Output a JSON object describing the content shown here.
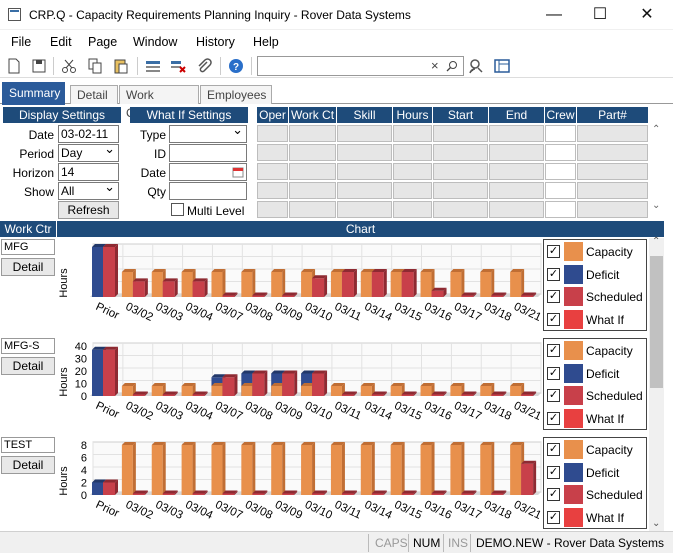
{
  "window": {
    "title": "CRP.Q - Capacity Requirements Planning Inquiry - Rover Data Systems",
    "minimize": "—",
    "maximize": "☐",
    "close": "✕"
  },
  "menu": [
    "File",
    "Edit",
    "Page",
    "Window",
    "History",
    "Help"
  ],
  "tabs": {
    "summary": "Summary",
    "detail": "Detail",
    "work_centers": "Work Centers",
    "employees": "Employees"
  },
  "display_settings": {
    "header": "Display Settings",
    "date_label": "Date",
    "date_value": "03-02-11",
    "period_label": "Period",
    "period_value": "Day",
    "horizon_label": "Horizon",
    "horizon_value": "14",
    "show_label": "Show",
    "show_value": "All",
    "refresh": "Refresh"
  },
  "what_if_settings": {
    "header": "What If Settings",
    "type_label": "Type",
    "type_value": "",
    "id_label": "ID",
    "id_value": "",
    "date_label": "Date",
    "date_value": "",
    "qty_label": "Qty",
    "qty_value": "",
    "multi_level": "Multi Level"
  },
  "grid": {
    "columns": [
      "Oper",
      "Work Ct",
      "Skill",
      "Hours",
      "Start",
      "End",
      "Crew",
      "Part#"
    ]
  },
  "chart_section": {
    "work_ctr_header": "Work Ctr",
    "chart_header": "Chart",
    "detail_button": "Detail",
    "y_label": "Hours"
  },
  "legend": {
    "capacity": "Capacity",
    "deficit": "Deficit",
    "scheduled": "Scheduled",
    "what_if": "What If"
  },
  "colors": {
    "capacity": "#e8904c",
    "deficit": "#2f4b8f",
    "scheduled": "#c8404a",
    "what_if": "#e84040",
    "header": "#1e4b7a"
  },
  "status": {
    "caps": "CAPS",
    "num": "NUM",
    "ins": "INS",
    "company": "DEMO.NEW - Rover Data Systems"
  },
  "chart_data": [
    {
      "type": "bar",
      "work_center": "MFG",
      "categories": [
        "Prior",
        "03/02",
        "03/03",
        "03/04",
        "03/07",
        "03/08",
        "03/09",
        "03/10",
        "03/11",
        "03/14",
        "03/15",
        "03/16",
        "03/17",
        "03/18",
        "03/21"
      ],
      "yticks": [],
      "ylim": [
        0,
        16
      ],
      "series": [
        {
          "name": "Capacity",
          "values": [
            0,
            8,
            8,
            8,
            8,
            8,
            8,
            8,
            8,
            8,
            8,
            8,
            8,
            8,
            8
          ]
        },
        {
          "name": "Deficit",
          "values": [
            16,
            0,
            0,
            0,
            0,
            0,
            0,
            0,
            0,
            0,
            0,
            0,
            0,
            0,
            0
          ]
        },
        {
          "name": "Scheduled",
          "values": [
            16,
            5,
            5,
            5,
            0,
            0,
            0,
            6,
            8,
            8,
            8,
            2,
            0,
            0,
            0
          ]
        }
      ],
      "ylabel": "Hours"
    },
    {
      "type": "bar",
      "work_center": "MFG-S",
      "categories": [
        "Prior",
        "03/02",
        "03/03",
        "03/04",
        "03/07",
        "03/08",
        "03/09",
        "03/10",
        "03/11",
        "03/14",
        "03/15",
        "03/16",
        "03/17",
        "03/18",
        "03/21"
      ],
      "yticks": [
        "40",
        "30",
        "20",
        "10",
        "0"
      ],
      "ylim": [
        0,
        40
      ],
      "series": [
        {
          "name": "Capacity",
          "values": [
            0,
            8,
            8,
            8,
            8,
            8,
            8,
            8,
            8,
            8,
            8,
            8,
            8,
            8,
            8
          ]
        },
        {
          "name": "Deficit",
          "values": [
            37,
            0,
            0,
            0,
            7,
            10,
            10,
            10,
            0,
            0,
            0,
            0,
            0,
            0,
            0
          ]
        },
        {
          "name": "Scheduled",
          "values": [
            37,
            0,
            0,
            0,
            15,
            18,
            18,
            18,
            0,
            0,
            0,
            0,
            0,
            0,
            0
          ]
        }
      ],
      "ylabel": "Hours"
    },
    {
      "type": "bar",
      "work_center": "TEST",
      "categories": [
        "Prior",
        "03/02",
        "03/03",
        "03/04",
        "03/07",
        "03/08",
        "03/09",
        "03/10",
        "03/11",
        "03/14",
        "03/15",
        "03/16",
        "03/17",
        "03/18",
        "03/21"
      ],
      "yticks": [
        "8",
        "6",
        "4",
        "2",
        "0"
      ],
      "ylim": [
        0,
        8
      ],
      "series": [
        {
          "name": "Capacity",
          "values": [
            0,
            8,
            8,
            8,
            8,
            8,
            8,
            8,
            8,
            8,
            8,
            8,
            8,
            8,
            8
          ]
        },
        {
          "name": "Deficit",
          "values": [
            2,
            0,
            0,
            0,
            0,
            0,
            0,
            0,
            0,
            0,
            0,
            0,
            0,
            0,
            0
          ]
        },
        {
          "name": "Scheduled",
          "values": [
            2,
            0,
            0,
            0,
            0,
            0,
            0,
            0,
            0,
            0,
            0,
            0,
            0,
            0,
            5
          ]
        }
      ],
      "ylabel": "Hours"
    }
  ]
}
